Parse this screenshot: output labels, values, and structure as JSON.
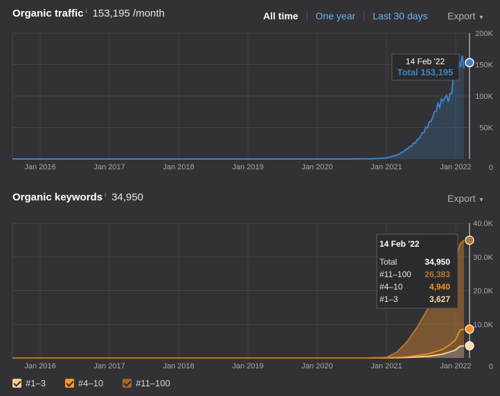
{
  "traffic": {
    "title": "Organic traffic",
    "info": "i",
    "value": "153,195 /month",
    "range_tabs": [
      "All time",
      "One year",
      "Last 30 days"
    ],
    "export_label": "Export",
    "export_caret": "▾",
    "tooltip": {
      "date": "14 Feb '22",
      "label": "Total 153,195"
    }
  },
  "keywords": {
    "title": "Organic keywords",
    "info": "i",
    "value": "34,950",
    "export_label": "Export",
    "export_caret": "▾",
    "tooltip": {
      "date": "14 Feb '22",
      "rows": [
        {
          "label": "Total",
          "value": "34,950",
          "color": "#ffffff"
        },
        {
          "label": "#11–100",
          "value": "26,383",
          "color": "#b5762f"
        },
        {
          "label": "#4–10",
          "value": "4,940",
          "color": "#f7961e"
        },
        {
          "label": "#1–3",
          "value": "3,627",
          "color": "#ffd9a6"
        }
      ]
    }
  },
  "legend": [
    {
      "label": "#1–3",
      "color": "#ffcf8f"
    },
    {
      "label": "#4–10",
      "color": "#f7961e"
    },
    {
      "label": "#11–100",
      "color": "#a0652a"
    }
  ],
  "chart_data": [
    {
      "type": "area",
      "title": "Organic traffic",
      "x_tick_labels": [
        "Jan 2016",
        "Jan 2017",
        "Jan 2018",
        "Jan 2019",
        "Jan 2020",
        "Jan 2021",
        "Jan 2022"
      ],
      "y_tick_labels": [
        "0",
        "50K",
        "100K",
        "150K",
        "200K"
      ],
      "ylim": [
        0,
        200000
      ],
      "xlim": [
        2015.6,
        2022.2
      ],
      "color": "#3d84c6",
      "grid": true,
      "series": [
        {
          "x": [
            2015.6,
            2020.5,
            2020.8,
            2021.0,
            2021.15,
            2021.25,
            2021.35,
            2021.45,
            2021.55,
            2021.65,
            2021.72,
            2021.8,
            2021.86,
            2021.9,
            2021.93,
            2021.97,
            2022.0,
            2022.03,
            2022.06,
            2022.1,
            2022.12
          ],
          "y": [
            0,
            0,
            300,
            1500,
            6000,
            12000,
            20000,
            30000,
            45000,
            62000,
            80000,
            92000,
            100000,
            95000,
            100000,
            130000,
            148000,
            155000,
            152000,
            156000,
            153195
          ]
        }
      ]
    },
    {
      "type": "area",
      "title": "Organic keywords",
      "x_tick_labels": [
        "Jan 2016",
        "Jan 2017",
        "Jan 2018",
        "Jan 2019",
        "Jan 2020",
        "Jan 2021",
        "Jan 2022"
      ],
      "y_tick_labels": [
        "0",
        "10.0K",
        "20.0K",
        "30.0K",
        "40.0K"
      ],
      "ylim": [
        0,
        40000
      ],
      "xlim": [
        2015.6,
        2022.2
      ],
      "stacked": true,
      "grid": true,
      "series": [
        {
          "name": "#1–3",
          "color": "#ffd9a6",
          "x": [
            2015.6,
            2020.7,
            2021.0,
            2021.3,
            2021.6,
            2021.8,
            2021.9,
            2022.0,
            2022.06,
            2022.12
          ],
          "y": [
            0,
            0,
            30,
            150,
            500,
            1100,
            1700,
            2400,
            3500,
            3627
          ]
        },
        {
          "name": "#4–10",
          "color": "#f7961e",
          "x": [
            2015.6,
            2020.7,
            2021.0,
            2021.3,
            2021.6,
            2021.8,
            2021.9,
            2022.0,
            2022.06,
            2022.12
          ],
          "y": [
            0,
            0,
            20,
            200,
            700,
            1400,
            2000,
            3000,
            4800,
            4940
          ]
        },
        {
          "name": "#11–100",
          "color": "#b5762f",
          "x": [
            2015.6,
            2020.7,
            2021.0,
            2021.15,
            2021.3,
            2021.45,
            2021.6,
            2021.75,
            2021.85,
            2021.92,
            2022.0,
            2022.06,
            2022.12
          ],
          "y": [
            0,
            0,
            100,
            1500,
            4500,
            8500,
            13500,
            17500,
            19000,
            20500,
            23500,
            25500,
            26383
          ]
        }
      ],
      "total": 34950
    }
  ]
}
